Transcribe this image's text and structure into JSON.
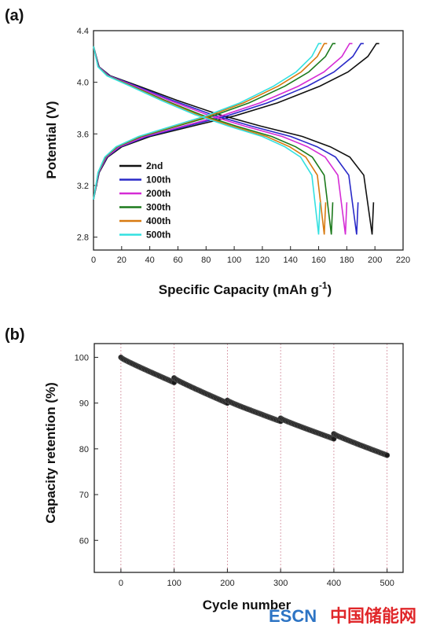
{
  "chart_data": [
    {
      "type": "line",
      "panel_label": "(a)",
      "xlabel": "Specific Capacity (mAh g",
      "xlabel_sup": "-1",
      "xlabel_close": ")",
      "ylabel": "Potential (V)",
      "xlim": [
        0,
        220
      ],
      "ylim": [
        2.7,
        4.4
      ],
      "xticks": [
        "0",
        "20",
        "40",
        "60",
        "80",
        "100",
        "120",
        "140",
        "160",
        "180",
        "200",
        "220"
      ],
      "xtick_values": [
        0,
        20,
        40,
        60,
        80,
        100,
        120,
        140,
        160,
        180,
        200,
        220
      ],
      "yticks": [
        "2.8",
        "3.2",
        "3.6",
        "4.0",
        "4.4"
      ],
      "ytick_values": [
        2.8,
        3.2,
        3.6,
        4.0,
        4.4
      ],
      "legend_position": "lower-left",
      "series": [
        {
          "name": "2nd",
          "color": "#111111",
          "charge_end": 201,
          "discharge_end": 198
        },
        {
          "name": "100th",
          "color": "#2a2ac8",
          "charge_end": 190,
          "discharge_end": 187
        },
        {
          "name": "200th",
          "color": "#d52cd5",
          "charge_end": 182,
          "discharge_end": 179
        },
        {
          "name": "300th",
          "color": "#1c7a1c",
          "charge_end": 170,
          "discharge_end": 169
        },
        {
          "name": "400th",
          "color": "#d87a10",
          "charge_end": 164,
          "discharge_end": 164
        },
        {
          "name": "500th",
          "color": "#33e0e0",
          "charge_end": 160,
          "discharge_end": 160
        }
      ]
    },
    {
      "type": "scatter",
      "panel_label": "(b)",
      "xlabel": "Cycle number",
      "ylabel": "Capacity retention (%)",
      "xlim": [
        -50,
        530
      ],
      "ylim": [
        53,
        103
      ],
      "xticks": [
        "0",
        "100",
        "200",
        "300",
        "400",
        "500"
      ],
      "xtick_values": [
        0,
        100,
        200,
        300,
        400,
        500
      ],
      "yticks": [
        "60",
        "70",
        "80",
        "90",
        "100"
      ],
      "ytick_values": [
        60,
        70,
        80,
        90,
        100
      ],
      "grid_x": true,
      "marker_color": "#1a1a1a",
      "segments": [
        {
          "x_start": 0,
          "x_end": 100,
          "y_start": 100.0,
          "y_end": 94.5
        },
        {
          "x_start": 100,
          "x_end": 200,
          "y_start": 95.5,
          "y_end": 90.0
        },
        {
          "x_start": 200,
          "x_end": 300,
          "y_start": 90.6,
          "y_end": 86.0
        },
        {
          "x_start": 300,
          "x_end": 400,
          "y_start": 86.7,
          "y_end": 82.2
        },
        {
          "x_start": 400,
          "x_end": 500,
          "y_start": 83.3,
          "y_end": 78.6
        }
      ]
    }
  ],
  "watermark": {
    "brand": "ESCN",
    "text": "中国储能网"
  }
}
